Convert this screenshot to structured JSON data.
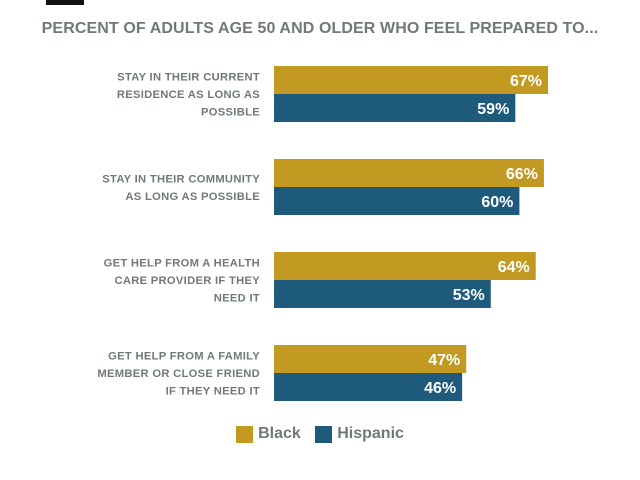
{
  "chart_data": {
    "type": "bar",
    "orientation": "horizontal",
    "title": "PERCENT OF ADULTS AGE 50 AND OLDER WHO FEEL PREPARED TO...",
    "categories": [
      [
        "STAY IN THEIR CURRENT",
        "RESIDENCE AS LONG AS",
        "POSSIBLE"
      ],
      [
        "STAY IN THEIR COMMUNITY",
        "AS LONG AS POSSIBLE"
      ],
      [
        "GET HELP FROM A HEALTH",
        "CARE PROVIDER IF THEY",
        "NEED IT"
      ],
      [
        "GET HELP FROM A FAMILY",
        "MEMBER OR CLOSE FRIEND",
        "IF THEY NEED IT"
      ]
    ],
    "series": [
      {
        "name": "Black",
        "color": "#c29a22",
        "values": [
          67,
          66,
          64,
          47
        ],
        "labels": [
          "67%",
          "66%",
          "64%",
          "47%"
        ]
      },
      {
        "name": "Hispanic",
        "color": "#1d5a7c",
        "values": [
          59,
          60,
          53,
          46
        ],
        "labels": [
          "59%",
          "60%",
          "53%",
          "46%"
        ]
      }
    ],
    "xlim": [
      0,
      100
    ],
    "grid": false,
    "legend_position": "bottom"
  }
}
